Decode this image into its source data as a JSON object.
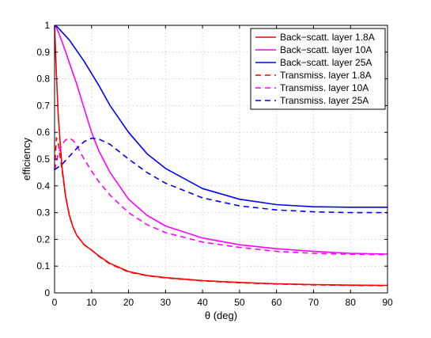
{
  "chart_data": {
    "type": "line",
    "title": "",
    "xlabel": "θ (deg)",
    "ylabel": "efficiency",
    "xlim": [
      0,
      90
    ],
    "ylim": [
      0,
      1
    ],
    "xticks": [
      0,
      10,
      20,
      30,
      40,
      50,
      60,
      70,
      80,
      90
    ],
    "yticks": [
      0,
      0.1,
      0.2,
      0.3,
      0.4,
      0.5,
      0.6,
      0.7,
      0.8,
      0.9,
      1
    ],
    "xtick_labels": [
      "0",
      "10",
      "20",
      "30",
      "40",
      "50",
      "60",
      "70",
      "80",
      "90"
    ],
    "ytick_labels": [
      "0",
      "0.1",
      "0.2",
      "0.3",
      "0.4",
      "0.5",
      "0.6",
      "0.7",
      "0.8",
      "0.9",
      "1"
    ],
    "grid": true,
    "legend_position": "top-right",
    "x": [
      0,
      0.5,
      1,
      2,
      3,
      4,
      5,
      6,
      8,
      10,
      12,
      15,
      20,
      25,
      30,
      40,
      50,
      60,
      70,
      80,
      90
    ],
    "series": [
      {
        "name": "Back−scatt. layer 1.8A",
        "color": "#ff0000",
        "style": "solid",
        "values": [
          1.0,
          0.82,
          0.66,
          0.47,
          0.36,
          0.29,
          0.245,
          0.215,
          0.18,
          0.16,
          0.138,
          0.11,
          0.08,
          0.065,
          0.057,
          0.046,
          0.039,
          0.034,
          0.031,
          0.029,
          0.028
        ]
      },
      {
        "name": "Back−scatt. layer 10A",
        "color": "#ff00ff",
        "style": "solid",
        "values": [
          1.0,
          0.99,
          0.975,
          0.94,
          0.9,
          0.86,
          0.82,
          0.78,
          0.69,
          0.6,
          0.53,
          0.45,
          0.35,
          0.29,
          0.25,
          0.205,
          0.18,
          0.165,
          0.155,
          0.148,
          0.145
        ]
      },
      {
        "name": "Back−scatt. layer 25A",
        "color": "#0000ff",
        "style": "solid",
        "values": [
          1.0,
          0.997,
          0.99,
          0.975,
          0.96,
          0.945,
          0.925,
          0.905,
          0.865,
          0.82,
          0.775,
          0.7,
          0.6,
          0.52,
          0.465,
          0.39,
          0.35,
          0.33,
          0.322,
          0.32,
          0.32
        ]
      },
      {
        "name": "Transmiss. layer 1.8A",
        "color": "#ff0000",
        "style": "dashed",
        "values": [
          0.46,
          0.58,
          0.56,
          0.46,
          0.36,
          0.29,
          0.245,
          0.215,
          0.18,
          0.16,
          0.136,
          0.108,
          0.078,
          0.064,
          0.056,
          0.045,
          0.038,
          0.033,
          0.03,
          0.028,
          0.027
        ]
      },
      {
        "name": "Transmiss. layer 10A",
        "color": "#ff00ff",
        "style": "dashed",
        "values": [
          0.46,
          0.49,
          0.52,
          0.555,
          0.572,
          0.578,
          0.57,
          0.55,
          0.5,
          0.455,
          0.415,
          0.365,
          0.3,
          0.255,
          0.225,
          0.19,
          0.17,
          0.155,
          0.148,
          0.144,
          0.143
        ]
      },
      {
        "name": "Transmiss. layer 25A",
        "color": "#0000ff",
        "style": "dashed",
        "values": [
          0.46,
          0.465,
          0.47,
          0.48,
          0.495,
          0.51,
          0.525,
          0.54,
          0.565,
          0.578,
          0.575,
          0.555,
          0.5,
          0.45,
          0.41,
          0.355,
          0.325,
          0.31,
          0.303,
          0.3,
          0.3
        ]
      }
    ]
  }
}
